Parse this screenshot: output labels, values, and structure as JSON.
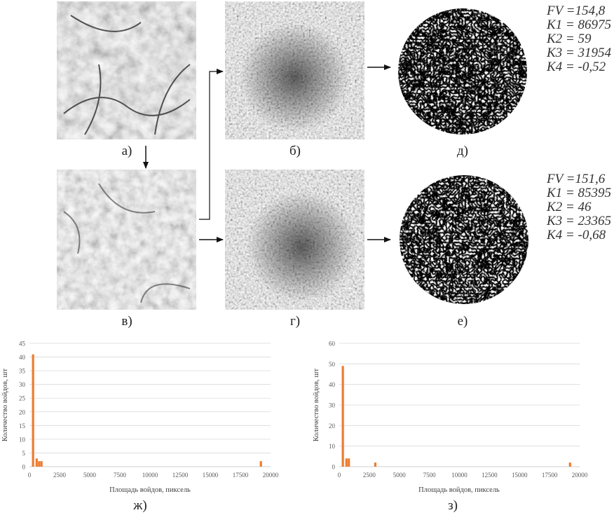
{
  "panels": {
    "a": {
      "caption": "а)"
    },
    "b": {
      "caption": "б)"
    },
    "v": {
      "caption": "в)"
    },
    "g": {
      "caption": "г)"
    },
    "d": {
      "caption": "д)"
    },
    "e": {
      "caption": "е)"
    }
  },
  "metrics_top": [
    "FV =154,8",
    "K1 = 86975",
    "K2 = 59",
    "K3 = 31954",
    "K4 = -0,52"
  ],
  "metrics_bottom": [
    "FV =151,6",
    "K1 = 85395",
    "K2 = 46",
    "K3 = 23365",
    "K4 = -0,68"
  ],
  "colors": {
    "bar": "#ed7d31",
    "grid": "#d9d9d9",
    "axis_text": "#595959"
  },
  "chart_data": [
    {
      "type": "bar",
      "caption": "ж)",
      "xlabel": "Площадь войдов, пиксель",
      "ylabel": "Количество войдов, шт",
      "xlim": [
        0,
        20000
      ],
      "ylim": [
        0,
        45
      ],
      "xticks": [
        0,
        2500,
        5000,
        7500,
        10000,
        12500,
        15000,
        17500,
        20000
      ],
      "yticks": [
        0,
        5,
        10,
        15,
        20,
        25,
        30,
        35,
        40,
        45
      ],
      "x": [
        300,
        600,
        800,
        1000,
        19200
      ],
      "values": [
        41,
        3,
        2,
        2,
        2
      ]
    },
    {
      "type": "bar",
      "caption": "з)",
      "xlabel": "Площадь войдов, пиксель",
      "ylabel": "Количество войдов, шт",
      "xlim": [
        0,
        20000
      ],
      "ylim": [
        0,
        60
      ],
      "xticks": [
        0,
        2500,
        5000,
        7500,
        10000,
        12500,
        15000,
        17500,
        20000
      ],
      "yticks": [
        0,
        10,
        20,
        30,
        40,
        50,
        60
      ],
      "x": [
        300,
        600,
        800,
        3000,
        19200
      ],
      "values": [
        49,
        4,
        4,
        2,
        2
      ]
    }
  ]
}
